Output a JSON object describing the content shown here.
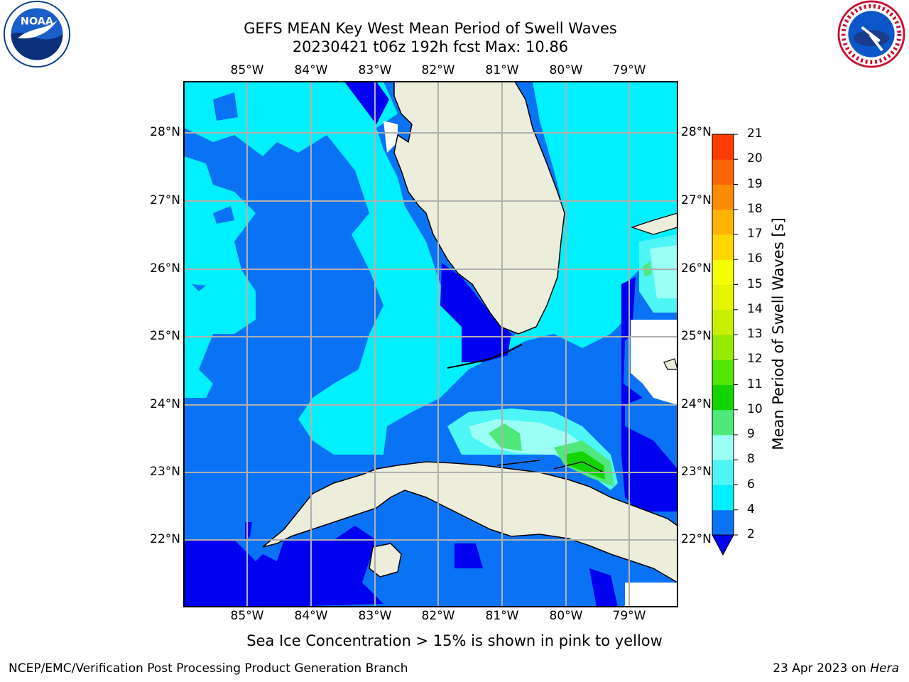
{
  "title_line1": "GEFS MEAN Key West Mean Period of Swell Waves",
  "title_line2": "20230421 t06z 192h fcst   Max: 10.86",
  "lon_labels": [
    "85°W",
    "84°W",
    "83°W",
    "82°W",
    "81°W",
    "80°W",
    "79°W"
  ],
  "lat_labels": [
    "28°N",
    "27°N",
    "26°N",
    "25°N",
    "24°N",
    "23°N",
    "22°N"
  ],
  "colorbar": {
    "title": "Mean Period of Swell Waves [s]",
    "ticks": [
      "2",
      "4",
      "6",
      "8",
      "9",
      "10",
      "11",
      "12",
      "13",
      "14",
      "15",
      "16",
      "17",
      "18",
      "19",
      "20",
      "21"
    ],
    "colors": [
      "#0a73f5",
      "#00f0ff",
      "#4df5f5",
      "#9cfff5",
      "#4fe87a",
      "#14d400",
      "#52e600",
      "#96eb00",
      "#c8f000",
      "#e6f500",
      "#f5ff00",
      "#ffd700",
      "#ffb400",
      "#ff8c00",
      "#ff6400",
      "#ff3c00",
      "#ff0000"
    ],
    "under_color": "#0000f0"
  },
  "palette": {
    "land": "#ededdc",
    "p2_4": "#0a73f5",
    "p4_6": "#00f0ff",
    "p6_8": "#4df5f5",
    "p8_9": "#9cfff5",
    "p9_10": "#4fe87a",
    "p10_11": "#14d400",
    "below2": "#0000f0"
  },
  "footnote": "Sea Ice Concentration > 15% is shown in pink to yellow",
  "credit": "NCEP/EMC/Verification Post Processing Product Generation Branch",
  "date": "23 Apr 2023 on",
  "date_host": "Hera",
  "logos": {
    "left": "NOAA",
    "right": "NATIONAL WEATHER SERVICE"
  }
}
